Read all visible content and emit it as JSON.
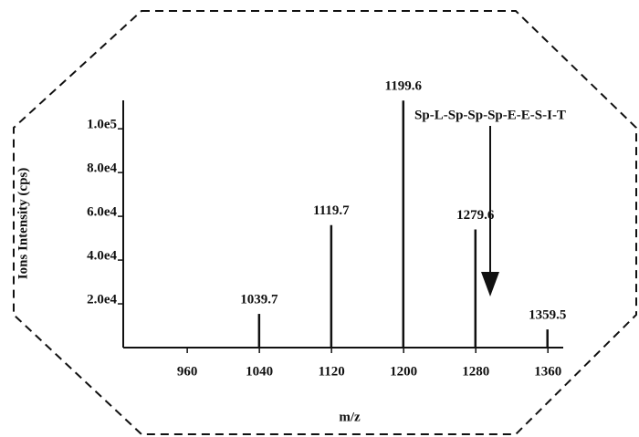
{
  "chart_data": {
    "type": "stem",
    "x_label": "m/z",
    "y_label": "Ions Intensity (cps)",
    "x": [
      1039.7,
      1119.7,
      1199.6,
      1279.6,
      1359.5
    ],
    "values": [
      15400,
      56000,
      112900,
      54000,
      8300
    ],
    "color": "#111111",
    "xlim": [
      889,
      1377
    ],
    "xticks": [
      960,
      1040,
      1120,
      1200,
      1280,
      1360
    ],
    "ylim": [
      0,
      113000
    ],
    "yticks": [
      {
        "value": 20000,
        "label": "2.0e4"
      },
      {
        "value": 40000,
        "label": "4.0e4"
      },
      {
        "value": 60000,
        "label": "6.0e4"
      },
      {
        "value": 80000,
        "label": "8.0e4"
      },
      {
        "value": 100000,
        "label": "1.0e5"
      }
    ],
    "annotation": "Sp-L-Sp-Sp-Sp-E-E-S-I-T"
  }
}
